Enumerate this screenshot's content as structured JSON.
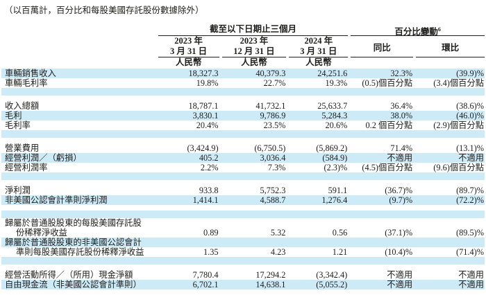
{
  "note": "（以百萬計，百分比和每股美國存託股份數據除外）",
  "colors": {
    "stripe": "#cdeaf7",
    "text": "#1d1d1b",
    "rule": "#1d1d1b"
  },
  "header": {
    "period_group": "截至以下日期止三個月",
    "change_group": "百分比變動",
    "change_group_footnote": "6",
    "period_cols": [
      {
        "line1": "2023 年",
        "line2": "3 月 31 日",
        "currency": "人民幣"
      },
      {
        "line1": "2023 年",
        "line2": "12 月 31 日",
        "currency": "人民幣"
      },
      {
        "line1": "2024 年",
        "line2": "3 月 31 日",
        "currency": "人民幣"
      }
    ],
    "change_cols": [
      {
        "label": "同比"
      },
      {
        "label": "環比"
      }
    ]
  },
  "rows": [
    {
      "type": "data",
      "shaded": true,
      "indent": false,
      "label": "車輛銷售收入",
      "values": [
        "18,327.3",
        "40,379.3",
        "24,251.6",
        "32.3%",
        "(39.9)%"
      ]
    },
    {
      "type": "data",
      "shaded": false,
      "indent": false,
      "label": "車輛毛利率",
      "values": [
        "19.8%",
        "22.7%",
        "19.3%",
        "(0.5)個百分點",
        "(3.4)個百分點"
      ]
    },
    {
      "type": "blank",
      "shaded": true
    },
    {
      "type": "spacer"
    },
    {
      "type": "data",
      "shaded": false,
      "indent": false,
      "label": "收入總額",
      "values": [
        "18,787.1",
        "41,732.1",
        "25,633.7",
        "36.4%",
        "(38.6)%"
      ]
    },
    {
      "type": "data",
      "shaded": true,
      "indent": false,
      "label": "毛利",
      "values": [
        "3,830.1",
        "9,786.9",
        "5,284.3",
        "38.0%",
        "(46.0)%"
      ]
    },
    {
      "type": "data",
      "shaded": false,
      "indent": false,
      "label": "毛利率",
      "values": [
        "20.4%",
        "23.5%",
        "20.6%",
        "0.2 個百分點",
        "(2.9)個百分點"
      ]
    },
    {
      "type": "blank",
      "shaded": true
    },
    {
      "type": "spacer"
    },
    {
      "type": "data",
      "shaded": false,
      "indent": false,
      "label": "營業費用",
      "values": [
        "(3,424.9)",
        "(6,750.5)",
        "(5,869.2)",
        "71.4%",
        "(13.1)%"
      ]
    },
    {
      "type": "data",
      "shaded": true,
      "indent": false,
      "label": "經營利潤／（虧損）",
      "values": [
        "405.2",
        "3,036.4",
        "(584.9)",
        "不適用",
        "不適用"
      ]
    },
    {
      "type": "data",
      "shaded": false,
      "indent": false,
      "label": "經營利潤率",
      "values": [
        "2.2%",
        "7.3%",
        "(2.3)%",
        "(4.5)個百分點",
        "(9.6)個百分點"
      ]
    },
    {
      "type": "blank",
      "shaded": true
    },
    {
      "type": "spacer"
    },
    {
      "type": "data",
      "shaded": false,
      "indent": false,
      "label": "淨利潤",
      "values": [
        "933.8",
        "5,752.3",
        "591.1",
        "(36.7)%",
        "(89.7)%"
      ]
    },
    {
      "type": "data",
      "shaded": true,
      "indent": false,
      "label": "非美國公認會計準則淨利潤",
      "values": [
        "1,414.1",
        "4,588.7",
        "1,276.4",
        "(9.7)%",
        "(72.2)%"
      ]
    },
    {
      "type": "spacer"
    },
    {
      "type": "blank",
      "shaded": true
    },
    {
      "type": "data",
      "shaded": false,
      "indent": false,
      "label": "歸屬於普通股股東的每股美國存託股",
      "values": [
        "",
        "",
        "",
        "",
        ""
      ]
    },
    {
      "type": "data",
      "shaded": false,
      "indent": true,
      "label": "份稀釋淨收益",
      "values": [
        "0.89",
        "5.32",
        "0.56",
        "(37.1)%",
        "(89.5)%"
      ]
    },
    {
      "type": "data",
      "shaded": true,
      "indent": false,
      "label": "歸屬於普通股股東的非美國公認會計",
      "values": [
        "",
        "",
        "",
        "",
        ""
      ]
    },
    {
      "type": "data",
      "shaded": false,
      "indent": true,
      "label": "準則每股美國存託股份稀釋淨收益",
      "values": [
        "1.35",
        "4.23",
        "1.21",
        "(10.4)%",
        "(71.4)%"
      ]
    },
    {
      "type": "blank",
      "shaded": true
    },
    {
      "type": "spacer"
    },
    {
      "type": "data",
      "shaded": false,
      "indent": false,
      "label": "經營活動所得／（所用）現金淨額",
      "values": [
        "7,780.4",
        "17,294.2",
        "(3,342.4)",
        "不適用",
        "不適用"
      ]
    },
    {
      "type": "data",
      "shaded": true,
      "indent": false,
      "label": "自由現金流（非美國公認會計準則）",
      "values": [
        "6,702.1",
        "14,638.1",
        "(5,055.2)",
        "不適用",
        "不適用"
      ]
    }
  ]
}
